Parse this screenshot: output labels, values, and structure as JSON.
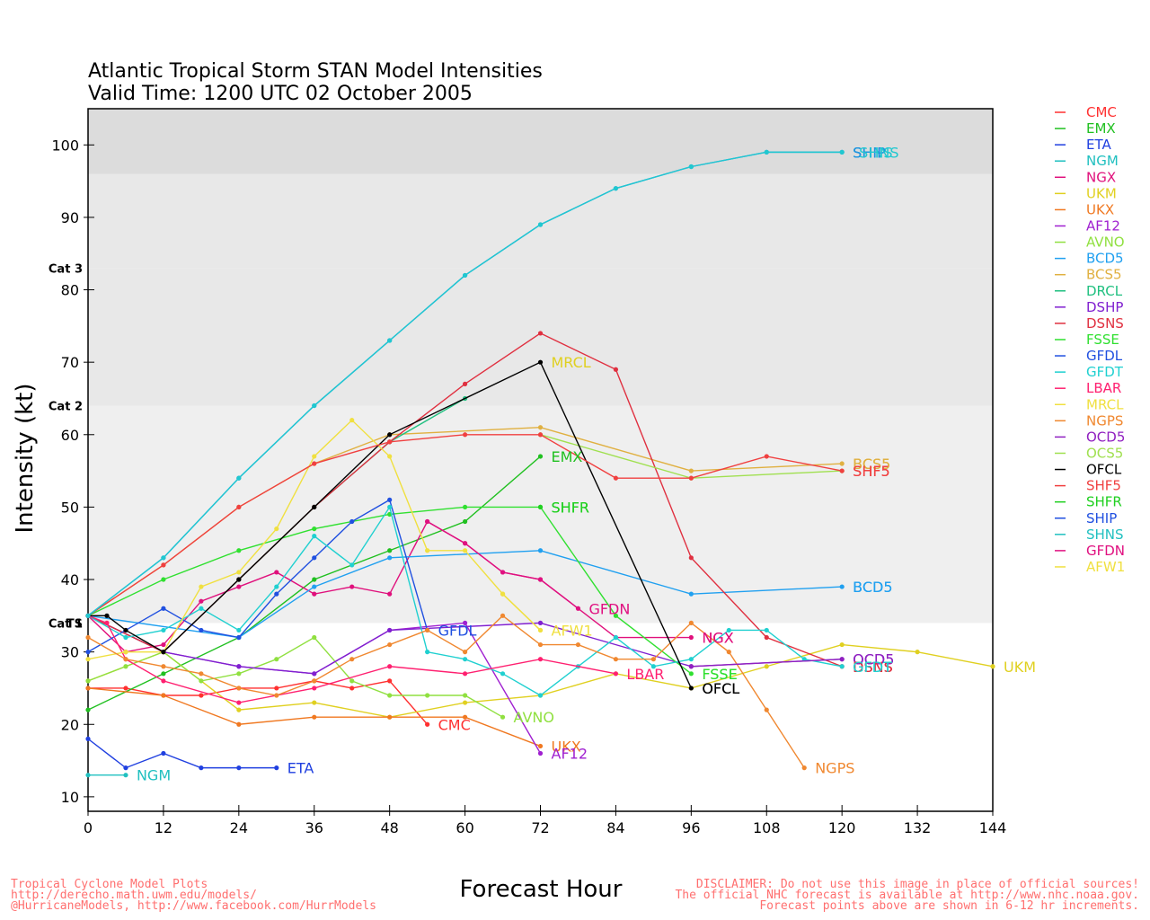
{
  "chart_data": {
    "type": "line",
    "title": [
      "Atlantic Tropical Storm STAN Model Intensities",
      "Valid Time: 1200 UTC 02 October 2005"
    ],
    "xlabel": "Forecast Hour",
    "ylabel": "Intensity (kt)",
    "xlim": [
      0,
      144
    ],
    "ylim": [
      8,
      105
    ],
    "xticks": [
      0,
      12,
      24,
      36,
      48,
      60,
      72,
      84,
      96,
      108,
      120,
      132,
      144
    ],
    "yticks": [
      10,
      20,
      30,
      40,
      50,
      60,
      70,
      80,
      90,
      100
    ],
    "grid": false,
    "legend_position": "right",
    "bands": [
      {
        "from": 34,
        "to": 64,
        "label": "Cat 1",
        "color": "#efefef"
      },
      {
        "from": 64,
        "to": 83,
        "label": "Cat 2",
        "color": "#e8e8e8"
      },
      {
        "from": 83,
        "to": 96,
        "label": "Cat 3",
        "color": "#e8e8e8"
      },
      {
        "from": 96,
        "to": 105,
        "label": "",
        "color": "#dcdcdc"
      }
    ],
    "ts_label": {
      "label": "TS",
      "value": 34
    },
    "series": [
      {
        "name": "CMC",
        "color": "#ff3030",
        "x": [
          0,
          6,
          12,
          18,
          24,
          30,
          36,
          42,
          48,
          54
        ],
        "y": [
          25,
          25,
          24,
          24,
          25,
          25,
          26,
          25,
          26,
          20
        ],
        "end_label": "CMC"
      },
      {
        "name": "EMX",
        "color": "#20c020",
        "x": [
          0,
          12,
          24,
          36,
          48,
          60,
          72
        ],
        "y": [
          22,
          27,
          32,
          40,
          44,
          48,
          57
        ],
        "end_label": "EMX"
      },
      {
        "name": "ETA",
        "color": "#2040e0",
        "x": [
          0,
          6,
          12,
          18,
          24,
          30
        ],
        "y": [
          18,
          14,
          16,
          14,
          14,
          14
        ],
        "end_label": "ETA"
      },
      {
        "name": "NGM",
        "color": "#20c0c0",
        "x": [
          0,
          6
        ],
        "y": [
          13,
          13
        ],
        "end_label": "NGM"
      },
      {
        "name": "NGX",
        "color": "#e0107c",
        "x": [
          0,
          6,
          12,
          18,
          24,
          30,
          36,
          42,
          48,
          54,
          60,
          66,
          72,
          84,
          96
        ],
        "y": [
          35,
          30,
          31,
          37,
          39,
          41,
          38,
          39,
          38,
          48,
          45,
          41,
          40,
          32,
          32
        ],
        "end_label": "NGX"
      },
      {
        "name": "UKM",
        "color": "#e0d020",
        "x": [
          0,
          12,
          24,
          36,
          48,
          60,
          72,
          84,
          96,
          108,
          120,
          132,
          144
        ],
        "y": [
          26,
          30,
          22,
          23,
          21,
          23,
          24,
          27,
          25,
          28,
          31,
          30,
          28
        ],
        "end_label": "UKM"
      },
      {
        "name": "UKX",
        "color": "#f07820",
        "x": [
          0,
          12,
          24,
          36,
          48,
          60,
          72
        ],
        "y": [
          25,
          24,
          20,
          21,
          21,
          21,
          17
        ],
        "end_label": "UKX"
      },
      {
        "name": "AF12",
        "color": "#a020d0",
        "x": [
          0,
          12,
          24,
          36,
          48,
          60,
          72
        ],
        "y": [
          35,
          30,
          28,
          27,
          33,
          34,
          16
        ],
        "end_label": "AF12"
      },
      {
        "name": "AVNO",
        "color": "#90e040",
        "x": [
          0,
          6,
          12,
          18,
          24,
          30,
          36,
          42,
          48,
          54,
          60,
          66
        ],
        "y": [
          26,
          28,
          30,
          26,
          27,
          29,
          32,
          26,
          24,
          24,
          24,
          21
        ],
        "end_label": "AVNO"
      },
      {
        "name": "BCD5",
        "color": "#20a0f0",
        "x": [
          0,
          24,
          36,
          48,
          72,
          96,
          120
        ],
        "y": [
          35,
          32,
          39,
          43,
          44,
          38,
          39
        ],
        "end_label": "BCD5"
      },
      {
        "name": "BCS5",
        "color": "#e0b040",
        "x": [
          0,
          12,
          24,
          36,
          48,
          72,
          96,
          120
        ],
        "y": [
          35,
          42,
          50,
          56,
          60,
          61,
          55,
          56
        ],
        "end_label": "BCS5"
      },
      {
        "name": "DRCL",
        "color": "#20c080",
        "x": [
          0,
          12,
          24,
          36,
          48,
          60
        ],
        "y": [
          35,
          30,
          40,
          50,
          59,
          65
        ],
        "end_label": ""
      },
      {
        "name": "DSHP",
        "color": "#8020d0",
        "x": [
          0,
          12,
          24,
          36,
          48,
          72,
          96,
          120
        ],
        "y": [
          35,
          30,
          28,
          27,
          33,
          34,
          28,
          29
        ],
        "end_label": "OCD5"
      },
      {
        "name": "DSNS",
        "color": "#e03040",
        "x": [
          0,
          12,
          24,
          36,
          48,
          60,
          72,
          84,
          96,
          108,
          120
        ],
        "y": [
          35,
          30,
          40,
          50,
          59,
          67,
          74,
          69,
          43,
          32,
          28
        ],
        "end_label": "DSNS"
      },
      {
        "name": "FSSE",
        "color": "#30e030",
        "x": [
          0,
          12,
          24,
          36,
          48,
          60,
          72,
          84,
          96
        ],
        "y": [
          35,
          40,
          44,
          47,
          49,
          50,
          50,
          35,
          27
        ],
        "end_label": "FSSE"
      },
      {
        "name": "GFDL",
        "color": "#2050e0",
        "x": [
          0,
          6,
          12,
          18,
          24,
          30,
          36,
          42,
          48,
          54
        ],
        "y": [
          30,
          33,
          36,
          33,
          32,
          38,
          43,
          48,
          51,
          33
        ],
        "end_label": "GFDL"
      },
      {
        "name": "GFDT",
        "color": "#20d0d0",
        "x": [
          0,
          6,
          12,
          18,
          24,
          30,
          36,
          42,
          48,
          54,
          60,
          66,
          72,
          78,
          84,
          90,
          96,
          102,
          108,
          114,
          120
        ],
        "y": [
          35,
          32,
          33,
          36,
          33,
          39,
          46,
          42,
          50,
          30,
          29,
          27,
          24,
          28,
          32,
          28,
          29,
          33,
          33,
          29,
          28
        ],
        "end_label": "GFDT"
      },
      {
        "name": "LBAR",
        "color": "#ff2070",
        "x": [
          0,
          3,
          6,
          12,
          24,
          36,
          48,
          60,
          72,
          84
        ],
        "y": [
          35,
          34,
          29,
          26,
          23,
          25,
          28,
          27,
          29,
          27
        ],
        "end_label": "LBAR"
      },
      {
        "name": "MRCL",
        "color": "#f0e040",
        "x": [
          0,
          6,
          12,
          18,
          24,
          30,
          36,
          42,
          48,
          54,
          60,
          66,
          72
        ],
        "y": [
          29,
          30,
          30,
          39,
          41,
          47,
          57,
          62,
          57,
          44,
          44,
          38,
          33
        ],
        "end_label": "AFW1"
      },
      {
        "name": "NGPS",
        "color": "#f08830",
        "x": [
          0,
          6,
          12,
          18,
          24,
          30,
          36,
          42,
          48,
          54,
          60,
          66,
          72,
          78,
          84,
          90,
          96,
          102,
          108,
          114
        ],
        "y": [
          32,
          29,
          28,
          27,
          25,
          24,
          26,
          29,
          31,
          33,
          30,
          35,
          31,
          31,
          29,
          29,
          34,
          30,
          22,
          14
        ],
        "end_label": "NGPS"
      },
      {
        "name": "OCD5",
        "color": "#9020c0",
        "x": [
          96,
          120
        ],
        "y": [
          28,
          29
        ],
        "end_label": ""
      },
      {
        "name": "OCS5",
        "color": "#a0e050",
        "x": [
          72,
          96,
          120
        ],
        "y": [
          60,
          54,
          55
        ],
        "end_label": ""
      },
      {
        "name": "OFCL",
        "color": "#000000",
        "x": [
          0,
          3,
          6,
          12,
          24,
          36,
          48,
          72,
          96
        ],
        "y": [
          35,
          35,
          33,
          30,
          40,
          50,
          60,
          70,
          25
        ],
        "end_label": "OFCL"
      },
      {
        "name": "SHF5",
        "color": "#f04040",
        "x": [
          0,
          12,
          24,
          36,
          48,
          60,
          72,
          84,
          96,
          108,
          120
        ],
        "y": [
          35,
          42,
          50,
          56,
          59,
          60,
          60,
          54,
          54,
          57,
          55
        ],
        "end_label": "SHF5"
      },
      {
        "name": "SHFR",
        "color": "#20d020",
        "x": [
          72
        ],
        "y": [
          50
        ],
        "end_label": "SHFR"
      },
      {
        "name": "SHIP",
        "color": "#2090e0",
        "x": [
          0,
          12,
          24,
          36,
          48,
          60,
          72,
          84,
          96,
          108,
          120
        ],
        "y": [
          35,
          43,
          54,
          64,
          73,
          82,
          89,
          94,
          97,
          99,
          99
        ],
        "end_label": "SHIP"
      },
      {
        "name": "SHNS",
        "color": "#20c8d0",
        "x": [
          0,
          12,
          24,
          36,
          48,
          60,
          72,
          84,
          96,
          108,
          120
        ],
        "y": [
          35,
          43,
          54,
          64,
          73,
          82,
          89,
          94,
          97,
          99,
          99
        ],
        "end_label": "SHNS"
      },
      {
        "name": "GFDN",
        "color": "#e01080",
        "x": [
          54,
          60,
          66,
          72,
          78
        ],
        "y": [
          48,
          45,
          41,
          40,
          36
        ],
        "end_label": "GFDN"
      },
      {
        "name": "AFW1",
        "color": "#f0e040",
        "x": [
          66,
          72
        ],
        "y": [
          38,
          33
        ],
        "end_label": ""
      }
    ],
    "floating_labels": [
      {
        "text": "SHFR",
        "x": 72,
        "y": 50,
        "color": "#20d020"
      },
      {
        "text": "MRCL",
        "x": 72,
        "y": 70,
        "color": "#e0d020"
      },
      {
        "text": "BCS5",
        "x": 120,
        "y": 56,
        "color": "#e0b040"
      },
      {
        "text": "SHF5",
        "x": 120,
        "y": 55,
        "color": "#f04040"
      },
      {
        "text": "BCD5",
        "x": 120,
        "y": 39,
        "color": "#20a0f0"
      },
      {
        "text": "OCD5",
        "x": 120,
        "y": 29,
        "color": "#9020c0"
      },
      {
        "text": "DSNS",
        "x": 120,
        "y": 28,
        "color": "#e03040"
      },
      {
        "text": "GFDT",
        "x": 120,
        "y": 28,
        "color": "#20d0d0"
      },
      {
        "text": "NGX",
        "x": 96,
        "y": 32,
        "color": "#e0107c"
      },
      {
        "text": "FSSE",
        "x": 96,
        "y": 27,
        "color": "#30e030"
      },
      {
        "text": "OFCL",
        "x": 96,
        "y": 25,
        "color": "#000000"
      },
      {
        "text": "SHIP",
        "x": 120,
        "y": 99,
        "color": "#2090e0"
      },
      {
        "text": "SHNS",
        "x": 121,
        "y": 99,
        "color": "#20c8d0"
      }
    ],
    "legend": [
      {
        "name": "CMC",
        "color": "#ff3030"
      },
      {
        "name": "EMX",
        "color": "#20c020"
      },
      {
        "name": "ETA",
        "color": "#2040e0"
      },
      {
        "name": "NGM",
        "color": "#20c0c0"
      },
      {
        "name": "NGX",
        "color": "#e0107c"
      },
      {
        "name": "UKM",
        "color": "#e0d020"
      },
      {
        "name": "UKX",
        "color": "#f07820"
      },
      {
        "name": "AF12",
        "color": "#a020d0"
      },
      {
        "name": "AVNO",
        "color": "#90e040"
      },
      {
        "name": "BCD5",
        "color": "#20a0f0"
      },
      {
        "name": "BCS5",
        "color": "#e0b040"
      },
      {
        "name": "DRCL",
        "color": "#20c080"
      },
      {
        "name": "DSHP",
        "color": "#8020d0"
      },
      {
        "name": "DSNS",
        "color": "#e03040"
      },
      {
        "name": "FSSE",
        "color": "#30e030"
      },
      {
        "name": "GFDL",
        "color": "#2050e0"
      },
      {
        "name": "GFDT",
        "color": "#20d0d0"
      },
      {
        "name": "LBAR",
        "color": "#ff2070"
      },
      {
        "name": "MRCL",
        "color": "#f0e040"
      },
      {
        "name": "NGPS",
        "color": "#f08830"
      },
      {
        "name": "OCD5",
        "color": "#9020c0"
      },
      {
        "name": "OCS5",
        "color": "#a0e050"
      },
      {
        "name": "OFCL",
        "color": "#000000"
      },
      {
        "name": "SHF5",
        "color": "#f04040"
      },
      {
        "name": "SHFR",
        "color": "#20d020"
      },
      {
        "name": "SHIP",
        "color": "#2050e0"
      },
      {
        "name": "SHNS",
        "color": "#20c0c0"
      },
      {
        "name": "GFDN",
        "color": "#e01080"
      },
      {
        "name": "AFW1",
        "color": "#f0e040"
      }
    ]
  },
  "footer": {
    "left": [
      "Tropical Cyclone Model Plots",
      "http://derecho.math.uwm.edu/models/",
      "@HurricaneModels, http://www.facebook.com/HurrModels"
    ],
    "right": [
      "DISCLAIMER: Do not use this image in place of official sources!",
      "The official NHC forecast is available at http://www.nhc.noaa.gov.",
      "Forecast points above are shown in 6-12 hr increments."
    ]
  }
}
